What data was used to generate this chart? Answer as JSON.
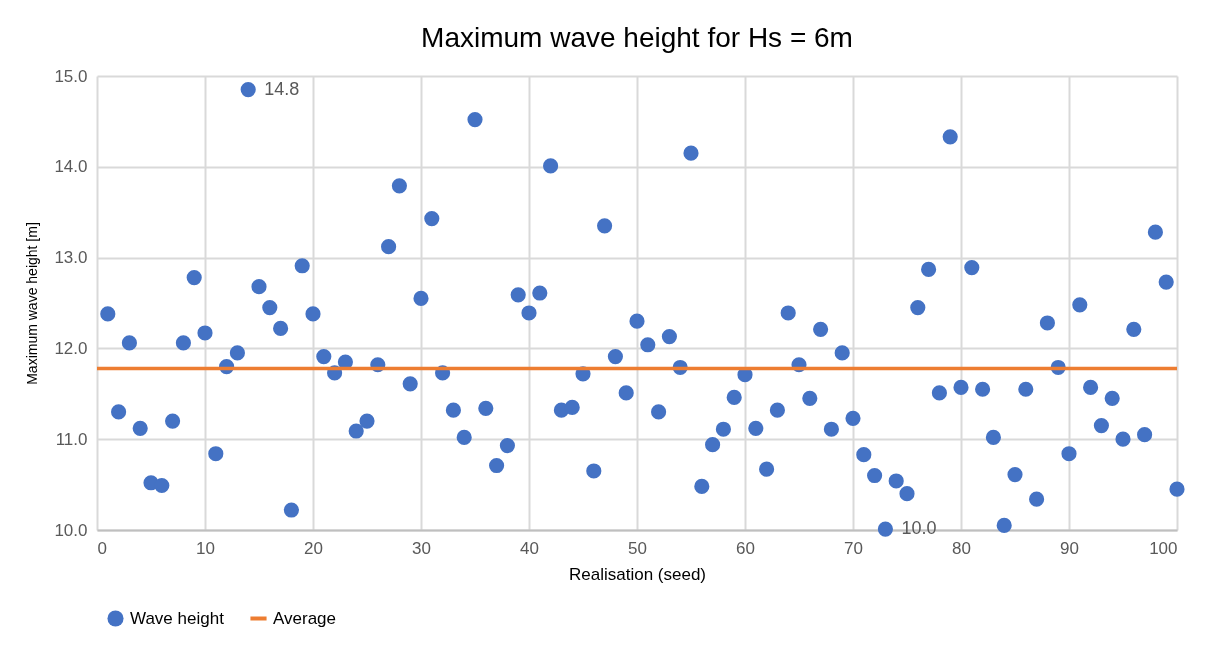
{
  "chart_data": {
    "type": "scatter",
    "title": "Maximum wave height for Hs = 6m",
    "xlabel": "Realisation (seed)",
    "ylabel": "Maximum wave height [m]",
    "xlim": [
      0,
      100
    ],
    "xticks": [
      0,
      10,
      20,
      30,
      40,
      50,
      60,
      70,
      80,
      90,
      100
    ],
    "ylim": [
      10,
      15
    ],
    "yticks": [
      {
        "value": 10,
        "label": "10.0"
      },
      {
        "value": 11,
        "label": "11.0"
      },
      {
        "value": 12,
        "label": "12.0"
      },
      {
        "value": 13,
        "label": "13.0"
      },
      {
        "value": 14,
        "label": "14.0"
      },
      {
        "value": 15,
        "label": "15.0"
      }
    ],
    "grid": true,
    "legend": "bottom",
    "x": [
      1,
      2,
      3,
      4,
      5,
      6,
      7,
      8,
      9,
      10,
      11,
      12,
      13,
      14,
      15,
      16,
      17,
      18,
      19,
      20,
      21,
      22,
      23,
      24,
      25,
      26,
      27,
      28,
      29,
      30,
      31,
      32,
      33,
      34,
      35,
      36,
      37,
      38,
      39,
      40,
      41,
      42,
      43,
      44,
      45,
      46,
      47,
      48,
      49,
      50,
      51,
      52,
      53,
      54,
      55,
      56,
      57,
      58,
      59,
      60,
      61,
      62,
      63,
      64,
      65,
      66,
      67,
      68,
      69,
      70,
      71,
      72,
      73,
      74,
      75,
      76,
      77,
      78,
      79,
      80,
      81,
      82,
      83,
      84,
      85,
      86,
      87,
      88,
      89,
      90,
      91,
      92,
      93,
      94,
      95,
      96,
      97,
      98,
      99,
      100
    ],
    "series": [
      {
        "name": "Wave height",
        "color": "#4472c4",
        "marker": "circle",
        "values": [
          12.38,
          11.3,
          12.06,
          11.12,
          10.52,
          10.49,
          11.2,
          12.06,
          12.78,
          12.17,
          10.84,
          11.8,
          11.95,
          14.85,
          12.68,
          12.45,
          12.22,
          10.22,
          12.91,
          12.38,
          11.91,
          11.73,
          11.85,
          11.09,
          11.2,
          11.82,
          13.12,
          13.79,
          11.61,
          12.55,
          13.43,
          11.73,
          11.32,
          11.02,
          14.52,
          11.34,
          10.71,
          10.93,
          12.59,
          12.39,
          12.61,
          14.01,
          11.32,
          11.35,
          11.72,
          10.65,
          13.35,
          11.91,
          11.51,
          12.3,
          12.04,
          11.3,
          12.13,
          11.79,
          14.15,
          10.48,
          10.94,
          11.11,
          11.46,
          11.71,
          11.12,
          10.67,
          11.32,
          12.39,
          11.82,
          11.45,
          12.21,
          11.11,
          11.95,
          11.23,
          10.83,
          10.6,
          10.01,
          10.54,
          10.4,
          12.45,
          12.87,
          11.51,
          14.33,
          11.57,
          12.89,
          11.55,
          11.02,
          10.05,
          10.61,
          11.55,
          10.34,
          12.28,
          11.79,
          10.84,
          12.48,
          11.57,
          11.15,
          11.45,
          11.0,
          12.21,
          11.05,
          13.28,
          12.73,
          10.45
        ],
        "value_labels": [
          null,
          null,
          null,
          null,
          null,
          null,
          null,
          null,
          null,
          null,
          null,
          null,
          null,
          "14.8",
          null,
          null,
          null,
          null,
          null,
          null,
          null,
          null,
          null,
          null,
          null,
          null,
          null,
          null,
          null,
          null,
          null,
          null,
          null,
          null,
          null,
          null,
          null,
          null,
          null,
          null,
          null,
          null,
          null,
          null,
          null,
          null,
          null,
          null,
          null,
          null,
          null,
          null,
          null,
          null,
          null,
          null,
          null,
          null,
          null,
          null,
          null,
          null,
          null,
          null,
          null,
          null,
          null,
          null,
          null,
          null,
          null,
          null,
          "10.0",
          null,
          null,
          null,
          null,
          null,
          null,
          null,
          null,
          null,
          null,
          null,
          null,
          null,
          null,
          null,
          null,
          null,
          null,
          null,
          null,
          null,
          null,
          null,
          null,
          null,
          null,
          null
        ]
      },
      {
        "name": "Average",
        "type": "line",
        "color": "#ed7d31",
        "x": [
          0,
          100
        ],
        "values": [
          11.78,
          11.78
        ],
        "line_style": "solid"
      }
    ]
  }
}
